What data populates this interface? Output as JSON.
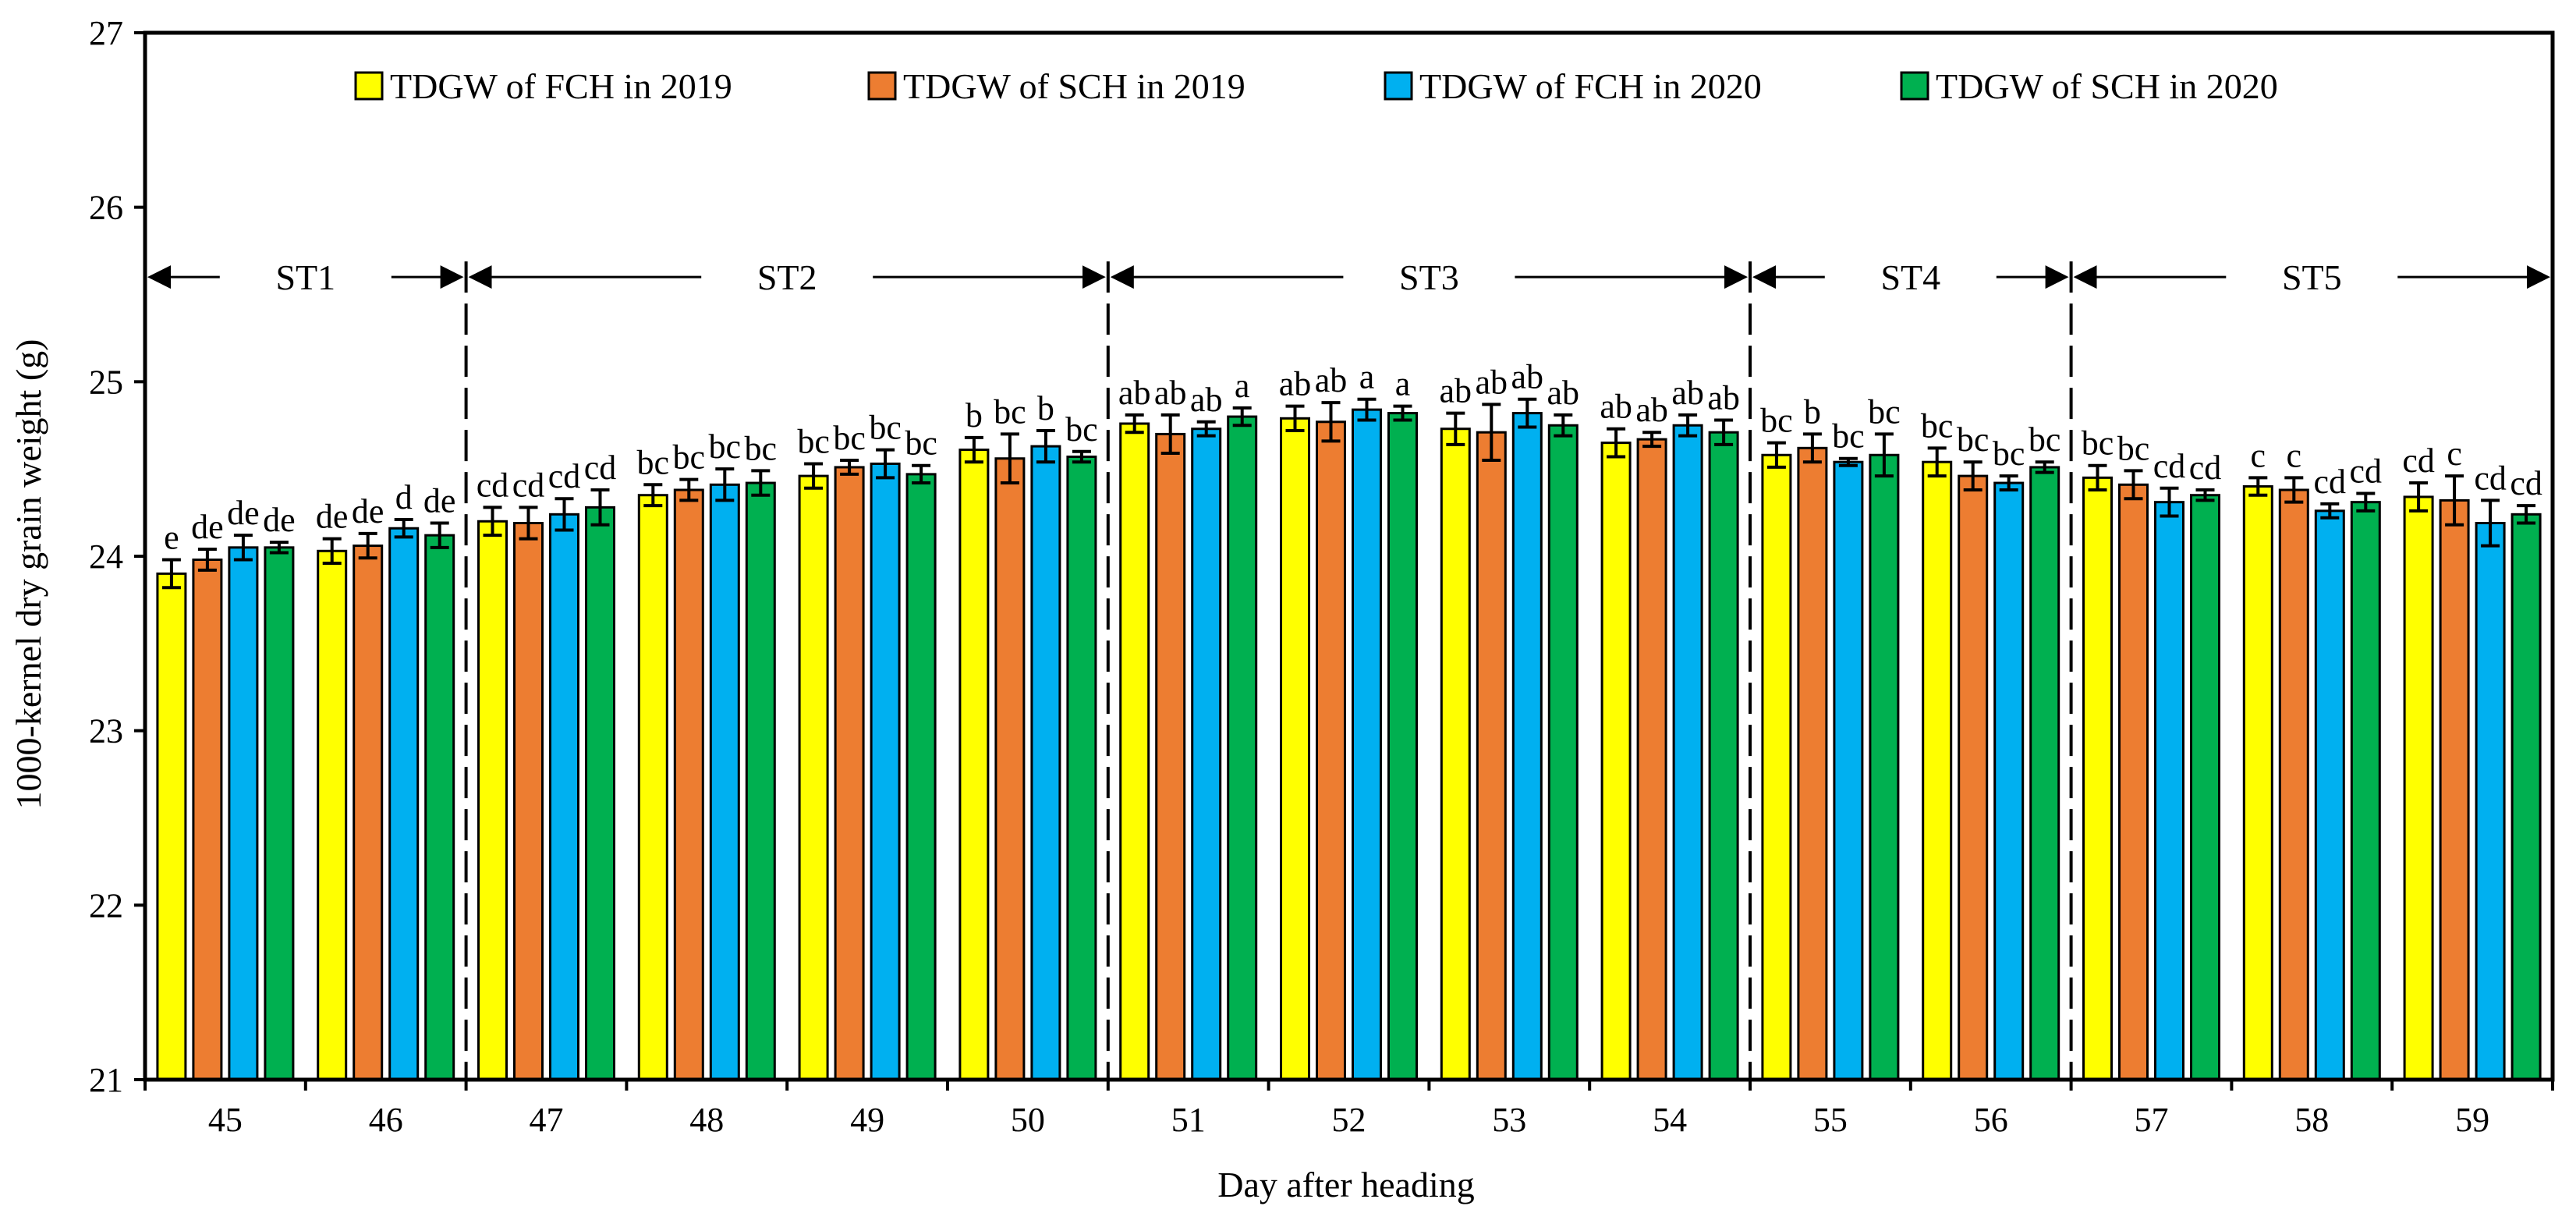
{
  "chart_data": {
    "type": "bar",
    "title": "",
    "xlabel": "Day after heading",
    "ylabel": "1000-kernel dry grain weight (g)",
    "ylim": [
      21,
      27
    ],
    "yticks": [
      21,
      22,
      23,
      24,
      25,
      26,
      27
    ],
    "grid": false,
    "legend_position": "top",
    "categories": [
      "45",
      "46",
      "47",
      "48",
      "49",
      "50",
      "51",
      "52",
      "53",
      "54",
      "55",
      "56",
      "57",
      "58",
      "59"
    ],
    "series": [
      {
        "name": "TDGW of FCH in 2019",
        "color": "#FFFF00",
        "values": [
          23.9,
          24.03,
          24.2,
          24.35,
          24.46,
          24.61,
          24.76,
          24.79,
          24.73,
          24.65,
          24.58,
          24.54,
          24.45,
          24.4,
          24.34
        ],
        "errors": [
          0.08,
          0.07,
          0.08,
          0.06,
          0.07,
          0.07,
          0.05,
          0.07,
          0.09,
          0.08,
          0.07,
          0.08,
          0.07,
          0.05,
          0.08
        ],
        "labels": [
          "e",
          "de",
          "cd",
          "bc",
          "bc",
          "b",
          "ab",
          "ab",
          "ab",
          "ab",
          "bc",
          "bc",
          "bc",
          "c",
          "cd"
        ]
      },
      {
        "name": "TDGW of SCH in 2019",
        "color": "#ED7D31",
        "values": [
          23.98,
          24.06,
          24.19,
          24.38,
          24.51,
          24.56,
          24.7,
          24.77,
          24.71,
          24.67,
          24.62,
          24.46,
          24.41,
          24.38,
          24.32
        ],
        "errors": [
          0.06,
          0.07,
          0.09,
          0.06,
          0.04,
          0.14,
          0.11,
          0.11,
          0.16,
          0.04,
          0.08,
          0.08,
          0.08,
          0.07,
          0.14
        ],
        "labels": [
          "de",
          "de",
          "cd",
          "bc",
          "bc",
          "bc",
          "ab",
          "ab",
          "ab",
          "ab",
          "b",
          "bc",
          "bc",
          "c",
          "c"
        ]
      },
      {
        "name": "TDGW of FCH in 2020",
        "color": "#00B0F0",
        "values": [
          24.05,
          24.16,
          24.24,
          24.41,
          24.53,
          24.63,
          24.73,
          24.84,
          24.82,
          24.75,
          24.54,
          24.42,
          24.31,
          24.26,
          24.19
        ],
        "errors": [
          0.07,
          0.05,
          0.09,
          0.09,
          0.08,
          0.09,
          0.04,
          0.06,
          0.08,
          0.06,
          0.02,
          0.04,
          0.08,
          0.04,
          0.13
        ],
        "labels": [
          "de",
          "d",
          "cd",
          "bc",
          "bc",
          "b",
          "ab",
          "a",
          "ab",
          "ab",
          "bc",
          "bc",
          "cd",
          "cd",
          "cd"
        ]
      },
      {
        "name": "TDGW of SCH in 2020",
        "color": "#00B050",
        "values": [
          24.05,
          24.12,
          24.28,
          24.42,
          24.47,
          24.57,
          24.8,
          24.82,
          24.75,
          24.71,
          24.58,
          24.51,
          24.35,
          24.31,
          24.24
        ],
        "errors": [
          0.03,
          0.07,
          0.1,
          0.07,
          0.05,
          0.03,
          0.05,
          0.04,
          0.06,
          0.07,
          0.12,
          0.03,
          0.03,
          0.05,
          0.05
        ],
        "labels": [
          "de",
          "de",
          "cd",
          "bc",
          "bc",
          "bc",
          "a",
          "a",
          "ab",
          "ab",
          "bc",
          "bc",
          "cd",
          "cd",
          "cd"
        ]
      }
    ],
    "stages": [
      {
        "name": "ST1",
        "from": 0,
        "to": 2
      },
      {
        "name": "ST2",
        "from": 2,
        "to": 6
      },
      {
        "name": "ST3",
        "from": 6,
        "to": 10
      },
      {
        "name": "ST4",
        "from": 10,
        "to": 12
      },
      {
        "name": "ST5",
        "from": 12,
        "to": 15
      }
    ],
    "stage_arrow_level": 25.6
  }
}
